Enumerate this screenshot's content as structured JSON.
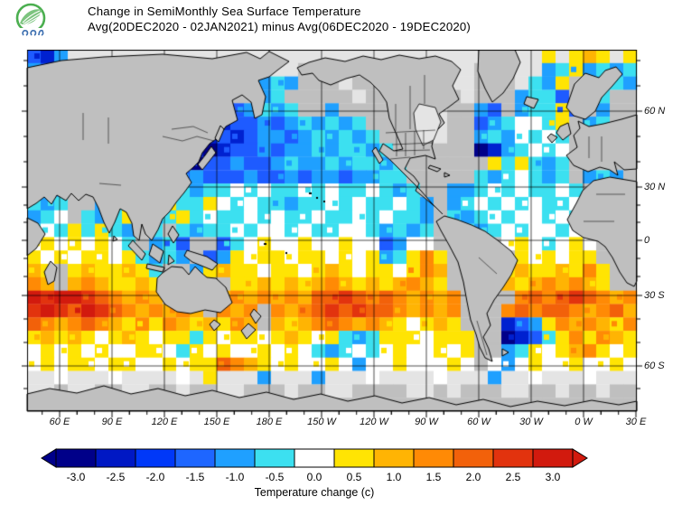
{
  "header": {
    "title_line1": "Change in SemiMonthly Sea Surface Temperature",
    "title_line2": "Avg(20DEC2020 - 02JAN2021) minus Avg(06DEC2020 - 19DEC2020)",
    "logo_text": "สสน"
  },
  "map": {
    "lat_labels": [
      "60 N",
      "30 N",
      "0",
      "30 S",
      "60 S"
    ],
    "lon_labels": [
      "60 E",
      "90 E",
      "120 E",
      "150 E",
      "180 E",
      "150 W",
      "120 W",
      "90 W",
      "60 W",
      "30 W",
      "0 W",
      "30 E"
    ],
    "land_color": "#BFBFBF",
    "ice_color": "#E4E4E4",
    "ocean_color": "#FFFFFF",
    "frame_color": "#000000"
  },
  "chart_data": {
    "type": "heatmap",
    "title": "Change in SemiMonthly Sea Surface Temperature",
    "subtitle": "Avg(20DEC2020 - 02JAN2021) minus Avg(06DEC2020 - 19DEC2020)",
    "lat_axis": [
      "60 N",
      "30 N",
      "0",
      "30 S",
      "60 S"
    ],
    "lon_axis": [
      "60 E",
      "90 E",
      "120 E",
      "150 E",
      "180 E",
      "150 W",
      "120 W",
      "90 W",
      "60 W",
      "30 W",
      "0 W",
      "30 E"
    ],
    "colorbar": {
      "caption": "Temperature change  (c)",
      "ticks": [
        "-3.0",
        "-2.5",
        "-2.0",
        "-1.5",
        "-1.0",
        "-0.5",
        "0.0",
        "0.5",
        "1.0",
        "1.5",
        "2.0",
        "2.5",
        "3.0"
      ],
      "colors": [
        "#000089",
        "#0018C4",
        "#0038F8",
        "#1E66FF",
        "#1FA0FF",
        "#3CE0F0",
        "#FFFFFF",
        "#FFE403",
        "#FFB403",
        "#FF8A05",
        "#F2610A",
        "#E2330E",
        "#D21A0E"
      ],
      "arrow_left_color": "#000089",
      "arrow_right_color": "#D21A0E"
    },
    "palette": {
      "D": "#000089",
      "B": "#0021D0",
      "b": "#1E5BFF",
      "c": "#1FA0FF",
      "C": "#3CE0F0",
      ".": "#FFFFFF",
      "y": "#FFE403",
      "Y": "#FFB403",
      "o": "#FF8A05",
      "O": "#F2610A",
      "r": "#E2330E",
      "R": "#D21A0E",
      "g": "#E4E4E4",
      "L": "#BFBFBF"
    },
    "palette_values": {
      "D": -3.0,
      "B": -2.5,
      "b": -1.5,
      "c": -1.0,
      "C": -0.5,
      ".": 0.0,
      "y": 0.5,
      "Y": 1.0,
      "o": 1.5,
      "O": 2.0,
      "r": 2.5,
      "R": 3.0,
      "g": "no-data/ice",
      "L": "land"
    },
    "grid_cols": 45,
    "grid_rows_count": 27,
    "grid_rows": [
      "bBcgggggggggggggggggggggggggggggggggggygyYygy",
      "cbgLLLLLLLLLLLLLLgggLLgLgLgggggggLLLggcCycCcC",
      "bLLLLLLLLLLLLLLLLcCcLLLgLLgLggLggLLLgCcyLLcCc",
      "LLLLLLLLLLLLLLLLLcCLLLLLgLLgLggLgLLLcCCbLLCLL",
      "LLLLLLLLLLLLLLLbcCcCLLcLLLLLLggLLcbLcCCybLcLL",
      "LLLLLLLLLLLLLLBbbcbcCcCcCLLLLggLLbcC..CyLcCLL",
      "LLLLLLLLLLLLLBbBbccbcCcCcCLLLLgLLcCc.C.CLCcLL",
      "LLLLLLLLLBLDBDBbbcbccCcCCcCLLLLLLDBcC.C.LLLLL",
      "LLLLLLLLLbBBDbbcbbcCccCcCCcCLLLLLLyCyCcCLLLLL",
      "LLLLLLLLBbbbcbbbcbbcbccbccCCLLLLLCcC.CcCLcCcL",
      "cLcLLccCcCyCcCC.C.CC.C.CC.CcCLLccC.C.CC.CLcLL",
      "CcCLLcCcLCyCCy.C.CCcCC.C.CC.CcLcC.C.C.CC.CcLL",
      "cC.LCcCyLcCyC.CC.C.CC.CC.C.CCcLCcC.C..C.CCLLL",
      "C.CyCyCcLCLCcCC.C..C.CC..CcCcCLCCcC.C..C.yLLL",
      ".y.y.y.CLcCbLLbC.y..y..y..bc..LLLLL.y.C.y.LLL",
      "y.y.yy.yCcCcLbcy.yy.yy.y.ycCyoyLLLLLy.y.yyLLL",
      "YyLyYyyYyCLLcyYyy.yy.yYy.yy.yoYLLLLyYyyYyoyLL",
      "oYLYoYyyYyLLLLLyyYyYyYoYyYyYoYyLLLLYyYoYoYyLL",
      "RrRRrOoYoYLLLLYoYoYoYOOrOoOoYoYoLLLLoOoOrOoYo",
      "rRrORrOoYoYoYLoYoLoYoOrOrOOoYoYoLLLoOoOOoYoOY",
      "OoYoOoYyoyoYyYyoYLYyYoOoYoYy.yYyLLLBbcyoYoYyo",
      "yYyYy.yYy.yyCy.yy.yYy.yCcCyyy.yyyLLDBbCyoyoYy",
      ".y.y.y..yy.Cy.y..y.y.CcC.C.y..y.yLLcCy.yYoy.y",
      ".y.yy.yy..y.yyOoYy.y..y.c..y...y.L.c.y..y..y.",
      "gg.ggg.gggg.gygggcgggcggg.gggg.gggcgg.ggg.ggg",
      "ggLggLLggLLgLLggLLLgLLggLLLLggLgLLLggLLgLLgLL",
      "LLLLLLLLLLLLLLLLLLLLLLLLLLLLLLLLLLLLLLLLLLLLL"
    ]
  }
}
